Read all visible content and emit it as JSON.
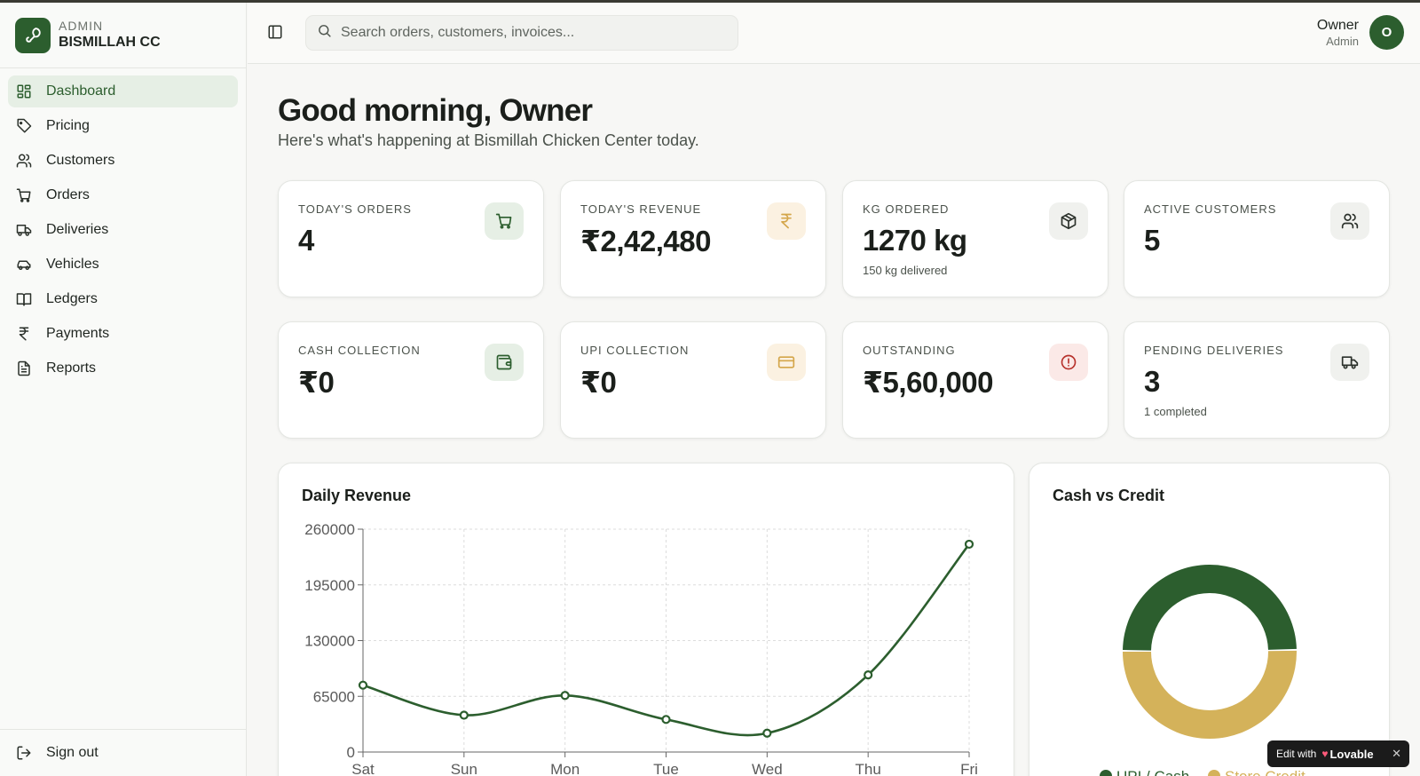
{
  "brand": {
    "kicker": "ADMIN",
    "name": "BISMILLAH CC"
  },
  "nav": [
    {
      "label": "Dashboard",
      "icon": "dashboard-icon",
      "active": true
    },
    {
      "label": "Pricing",
      "icon": "tag-icon"
    },
    {
      "label": "Customers",
      "icon": "users-icon"
    },
    {
      "label": "Orders",
      "icon": "cart-icon"
    },
    {
      "label": "Deliveries",
      "icon": "truck-icon"
    },
    {
      "label": "Vehicles",
      "icon": "car-icon"
    },
    {
      "label": "Ledgers",
      "icon": "book-icon"
    },
    {
      "label": "Payments",
      "icon": "rupee-icon"
    },
    {
      "label": "Reports",
      "icon": "file-icon"
    }
  ],
  "signout": {
    "label": "Sign out"
  },
  "search": {
    "placeholder": "Search orders, customers, invoices..."
  },
  "user": {
    "name": "Owner",
    "role": "Admin",
    "initial": "O"
  },
  "greeting": {
    "title": "Good morning, Owner",
    "subtitle": "Here's what's happening at Bismillah Chicken Center today."
  },
  "stats": [
    {
      "label": "TODAY'S ORDERS",
      "value": "4",
      "sub": "",
      "icon": "cart-icon",
      "tone": "green"
    },
    {
      "label": "TODAY'S REVENUE",
      "value": "₹2,42,480",
      "sub": "",
      "icon": "rupee-icon",
      "tone": "amber"
    },
    {
      "label": "KG ORDERED",
      "value": "1270 kg",
      "sub": "150 kg delivered",
      "icon": "package-icon",
      "tone": "gray"
    },
    {
      "label": "ACTIVE CUSTOMERS",
      "value": "5",
      "sub": "",
      "icon": "users-icon",
      "tone": "gray"
    },
    {
      "label": "CASH COLLECTION",
      "value": "₹0",
      "sub": "",
      "icon": "wallet-icon",
      "tone": "green"
    },
    {
      "label": "UPI COLLECTION",
      "value": "₹0",
      "sub": "",
      "icon": "credit-card-icon",
      "tone": "amber"
    },
    {
      "label": "OUTSTANDING",
      "value": "₹5,60,000",
      "sub": "",
      "icon": "alert-icon",
      "tone": "red"
    },
    {
      "label": "PENDING DELIVERIES",
      "value": "3",
      "sub": "1 completed",
      "icon": "truck-icon",
      "tone": "gray"
    }
  ],
  "revenue_panel": {
    "title": "Daily Revenue"
  },
  "donut_panel": {
    "title": "Cash vs Credit"
  },
  "lovable": {
    "prefix": "Edit with",
    "brand": "Lovable",
    "close": "✕"
  },
  "colors": {
    "primary": "#2c5e2e",
    "amber": "#d4b25a",
    "red": "#b7322c"
  },
  "chart_data": [
    {
      "type": "line",
      "title": "Daily Revenue",
      "categories": [
        "Sat",
        "Sun",
        "Mon",
        "Tue",
        "Wed",
        "Thu",
        "Fri"
      ],
      "values": [
        78000,
        43000,
        66000,
        38000,
        22000,
        90000,
        242480
      ],
      "yticks": [
        0,
        65000,
        130000,
        195000,
        260000
      ],
      "ylim": [
        0,
        260000
      ],
      "grid": true,
      "color": "#2c5e2e"
    },
    {
      "type": "pie",
      "title": "Cash vs Credit",
      "labels": [
        "UPI / Cash",
        "Store Credit"
      ],
      "values": [
        49.5,
        50.5
      ],
      "colors": [
        "#2c5e2e",
        "#d4b25a"
      ],
      "legend": "bottom"
    }
  ]
}
